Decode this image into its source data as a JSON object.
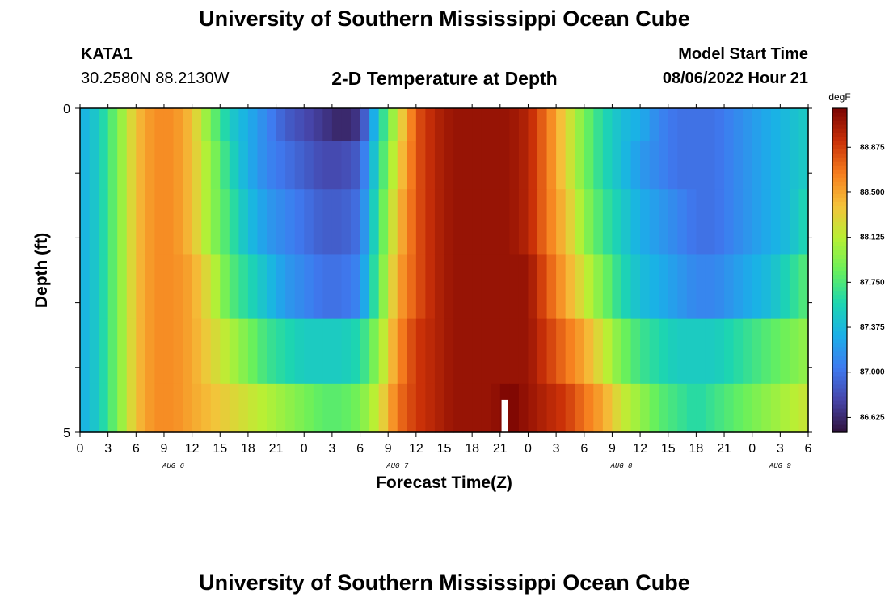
{
  "header": {
    "title": "University of Southern Mississippi Ocean Cube",
    "station": "KATA1",
    "coords": "30.2580N  88.2130W",
    "subtitle": "2-D Temperature at Depth",
    "model_start_label": "Model Start Time",
    "model_start_value": "08/06/2022 Hour 21"
  },
  "footer": {
    "title": "University of Southern Mississippi Ocean Cube"
  },
  "chart_data": {
    "type": "heatmap",
    "title": "2-D Temperature at Depth",
    "xlabel": "Forecast Time(Z)",
    "ylabel": "Depth (ft)",
    "x_tick_labels": [
      "0",
      "3",
      "6",
      "9",
      "12",
      "15",
      "18",
      "21",
      "0",
      "3",
      "6",
      "9",
      "12",
      "15",
      "18",
      "21",
      "0",
      "3",
      "6",
      "9",
      "12",
      "15",
      "18",
      "21",
      "0",
      "3",
      "6"
    ],
    "day_labels": [
      {
        "label": "AUG 6",
        "hour": 10
      },
      {
        "label": "AUG 7",
        "hour": 34
      },
      {
        "label": "AUG 8",
        "hour": 58
      },
      {
        "label": "AUG 9",
        "hour": 75
      }
    ],
    "x_range_hours": [
      0,
      78
    ],
    "y_range_ft": [
      0,
      5
    ],
    "y_tick_labels": [
      "0",
      "5"
    ],
    "colorbar": {
      "unit": "degF",
      "range": [
        86.5,
        89.2
      ],
      "tick_labels": [
        "88.875",
        "88.500",
        "88.125",
        "87.750",
        "87.375",
        "87.000",
        "86.625"
      ],
      "tick_values": [
        88.875,
        88.5,
        88.125,
        87.75,
        87.375,
        87.0,
        86.625
      ]
    },
    "colors": {
      "missing_marker": "#ffffff"
    },
    "missing_marker": {
      "hour": 45.5,
      "depth_from_ft": 4.5,
      "depth_to_ft": 5.0
    },
    "depths_ft": [
      0.25,
      0.75,
      1.75,
      2.75,
      3.75,
      4.75
    ],
    "hours": [
      0,
      2,
      4,
      6,
      8,
      10,
      12,
      14,
      16,
      18,
      20,
      22,
      24,
      26,
      28,
      30,
      32,
      34,
      36,
      38,
      40,
      42,
      44,
      46,
      48,
      50,
      52,
      54,
      56,
      58,
      60,
      62,
      64,
      66,
      68,
      70,
      72,
      74,
      76,
      78
    ],
    "values": [
      [
        87.3,
        87.5,
        87.9,
        88.4,
        88.6,
        88.6,
        88.4,
        87.9,
        87.5,
        87.3,
        87.1,
        86.9,
        86.8,
        86.7,
        86.6,
        86.7,
        87.5,
        88.2,
        88.8,
        89.0,
        89.1,
        89.1,
        89.1,
        89.1,
        89.0,
        88.7,
        88.3,
        87.9,
        87.6,
        87.4,
        87.3,
        87.1,
        87.0,
        87.0,
        87.0,
        87.1,
        87.2,
        87.3,
        87.4,
        87.5
      ],
      [
        87.3,
        87.5,
        87.9,
        88.4,
        88.6,
        88.6,
        88.4,
        88.0,
        87.6,
        87.3,
        87.1,
        87.0,
        86.9,
        86.8,
        86.8,
        86.9,
        87.6,
        88.3,
        88.8,
        89.0,
        89.1,
        89.1,
        89.1,
        89.1,
        89.0,
        88.7,
        88.3,
        87.9,
        87.6,
        87.4,
        87.2,
        87.1,
        87.0,
        87.0,
        87.0,
        87.1,
        87.2,
        87.3,
        87.4,
        87.5
      ],
      [
        87.3,
        87.5,
        87.9,
        88.4,
        88.6,
        88.6,
        88.4,
        88.0,
        87.7,
        87.4,
        87.2,
        87.1,
        87.0,
        86.9,
        86.9,
        87.0,
        87.7,
        88.4,
        88.8,
        89.0,
        89.1,
        89.1,
        89.1,
        89.1,
        89.0,
        88.7,
        88.4,
        88.0,
        87.7,
        87.5,
        87.3,
        87.2,
        87.1,
        87.0,
        87.0,
        87.1,
        87.2,
        87.3,
        87.4,
        87.6
      ],
      [
        87.3,
        87.5,
        87.9,
        88.4,
        88.6,
        88.6,
        88.5,
        88.2,
        87.8,
        87.6,
        87.4,
        87.2,
        87.1,
        87.0,
        87.0,
        87.1,
        87.8,
        88.5,
        88.8,
        89.0,
        89.1,
        89.1,
        89.1,
        89.1,
        89.1,
        88.8,
        88.5,
        88.2,
        87.9,
        87.6,
        87.4,
        87.3,
        87.2,
        87.1,
        87.1,
        87.2,
        87.3,
        87.4,
        87.6,
        87.8
      ],
      [
        87.3,
        87.5,
        87.9,
        88.4,
        88.6,
        88.6,
        88.5,
        88.3,
        88.1,
        87.9,
        87.7,
        87.6,
        87.5,
        87.5,
        87.5,
        87.6,
        88.0,
        88.6,
        88.9,
        89.0,
        89.1,
        89.1,
        89.1,
        89.1,
        89.1,
        88.9,
        88.7,
        88.5,
        88.2,
        87.9,
        87.7,
        87.6,
        87.5,
        87.5,
        87.5,
        87.6,
        87.7,
        87.8,
        87.9,
        88.0
      ],
      [
        87.3,
        87.5,
        87.9,
        88.4,
        88.6,
        88.6,
        88.5,
        88.4,
        88.3,
        88.2,
        88.1,
        88.0,
        87.9,
        87.8,
        87.8,
        87.9,
        88.2,
        88.7,
        88.9,
        89.0,
        89.1,
        89.1,
        89.1,
        89.2,
        89.1,
        89.0,
        88.9,
        88.7,
        88.5,
        88.2,
        88.0,
        87.8,
        87.7,
        87.6,
        87.7,
        87.8,
        87.9,
        88.0,
        88.1,
        88.2
      ]
    ]
  }
}
